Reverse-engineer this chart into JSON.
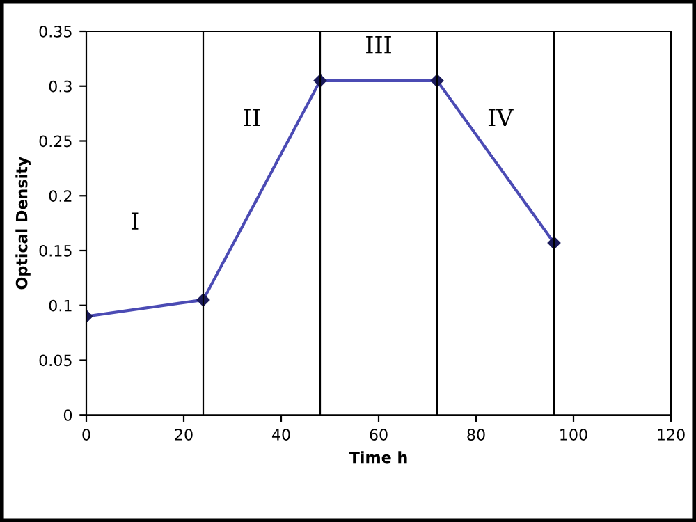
{
  "chart_data": {
    "type": "line",
    "xlabel": "Time h",
    "ylabel": "Optical Density",
    "x": [
      0,
      24,
      48,
      72,
      96
    ],
    "series": [
      {
        "color": "#4b4bb4",
        "values": [
          0.09,
          0.105,
          0.305,
          0.305,
          0.157
        ]
      }
    ],
    "marker": "diamond",
    "line_style": "solid",
    "xlim": [
      0,
      120
    ],
    "xticks": [
      0,
      20,
      40,
      60,
      80,
      100,
      120
    ],
    "ylim": [
      0,
      0.35
    ],
    "yticks": [
      0,
      0.05,
      0.1,
      0.15,
      0.2,
      0.25,
      0.3,
      0.35
    ],
    "grid": false,
    "legend": false,
    "ref_lines": [
      {
        "axis": "x",
        "value": 24,
        "color": "#000000"
      },
      {
        "axis": "x",
        "value": 48,
        "color": "#000000"
      },
      {
        "axis": "x",
        "value": 72,
        "color": "#000000"
      },
      {
        "axis": "x",
        "value": 96,
        "color": "#000000"
      }
    ],
    "annotations": [
      "I",
      "II",
      "III",
      "IV"
    ]
  }
}
